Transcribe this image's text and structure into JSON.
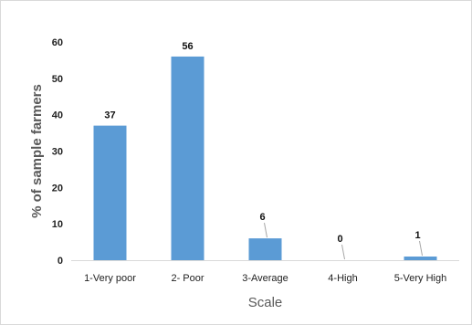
{
  "chart_data": {
    "type": "bar",
    "categories": [
      "1-Very poor",
      "2- Poor",
      "3-Average",
      "4-High",
      "5-Very High"
    ],
    "values": [
      37,
      56,
      6,
      0,
      1
    ],
    "data_labels": [
      "37",
      "56",
      "6",
      "0",
      "1"
    ],
    "title": "",
    "xlabel": "Scale",
    "ylabel": "% of sample farmers",
    "ylim": [
      0,
      60
    ],
    "yticks": [
      "0",
      "10",
      "20",
      "30",
      "40",
      "50",
      "60"
    ],
    "grid": false,
    "legend": "none",
    "bar_color": "#5b9bd5"
  }
}
